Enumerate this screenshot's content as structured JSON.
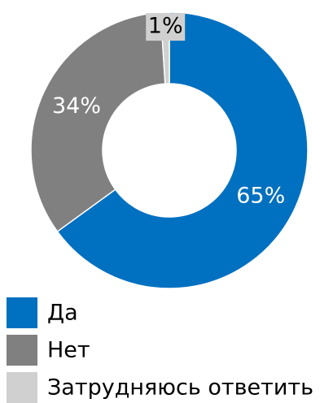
{
  "chart_data": {
    "type": "donut",
    "categories": [
      "Да",
      "Нет",
      "Затрудняюсь ответить"
    ],
    "values": [
      65,
      34,
      1
    ],
    "value_labels": [
      "65%",
      "34%",
      "1%"
    ],
    "colors": [
      "#0070c0",
      "#808080",
      "#d0d0d0"
    ],
    "label_colors": [
      "#ffffff",
      "#ffffff",
      "#000000"
    ],
    "legend": "bottom"
  }
}
